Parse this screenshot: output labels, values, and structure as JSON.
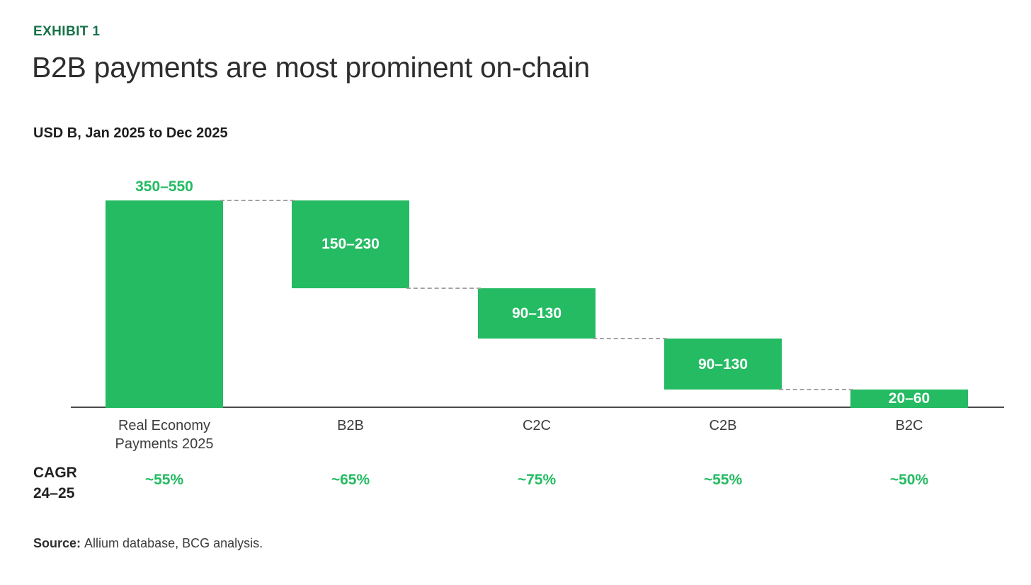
{
  "exhibit_label": "EXHIBIT 1",
  "title": "B2B payments are most prominent on-chain",
  "subtitle": "USD B, Jan 2025 to Dec 2025",
  "cagr_label": {
    "line1": "CAGR",
    "line2": "24–25"
  },
  "source": {
    "label": "Source:",
    "text": "Allium database, BCG analysis."
  },
  "colors": {
    "bar_green": "#24bb62",
    "dark_green": "#177248",
    "title_gray": "#2d2d2d",
    "axis_label_gray": "#3d3d3d",
    "connector_gray": "#a3a3a3",
    "axis_line_gray": "#4b4b4b",
    "value_label_white": "#ffffff"
  },
  "chart_data": {
    "type": "bar",
    "subtype": "waterfall",
    "title": "USD B, Jan 2025 to Dec 2025",
    "xlabel": "",
    "ylabel": "USD B",
    "ylim": [
      0,
      450
    ],
    "grid": false,
    "legend": "none",
    "categories": [
      "Real Economy Payments 2025",
      "B2B",
      "C2C",
      "C2B",
      "B2C"
    ],
    "segments": [
      {
        "category": "Real Economy Payments 2025",
        "axis_label_lines": [
          "Real Economy",
          "Payments 2025"
        ],
        "value_label": "350–550",
        "low": 350,
        "high": 550,
        "mid": 450,
        "start": 0,
        "end": 450,
        "value_label_position": "above",
        "cagr_24_25": "~55%"
      },
      {
        "category": "B2B",
        "axis_label_lines": [
          "B2B"
        ],
        "value_label": "150–230",
        "low": 150,
        "high": 230,
        "mid": 190,
        "start": 260,
        "end": 450,
        "value_label_position": "inside",
        "cagr_24_25": "~65%"
      },
      {
        "category": "C2C",
        "axis_label_lines": [
          "C2C"
        ],
        "value_label": "90–130",
        "low": 90,
        "high": 130,
        "mid": 110,
        "start": 150,
        "end": 260,
        "value_label_position": "inside",
        "cagr_24_25": "~75%"
      },
      {
        "category": "C2B",
        "axis_label_lines": [
          "C2B"
        ],
        "value_label": "90–130",
        "low": 90,
        "high": 130,
        "mid": 110,
        "start": 40,
        "end": 150,
        "value_label_position": "inside",
        "cagr_24_25": "~55%"
      },
      {
        "category": "B2C",
        "axis_label_lines": [
          "B2C"
        ],
        "value_label": "20–60",
        "low": 20,
        "high": 60,
        "mid": 40,
        "start": 0,
        "end": 40,
        "value_label_position": "inside",
        "cagr_24_25": "~50%"
      }
    ]
  }
}
